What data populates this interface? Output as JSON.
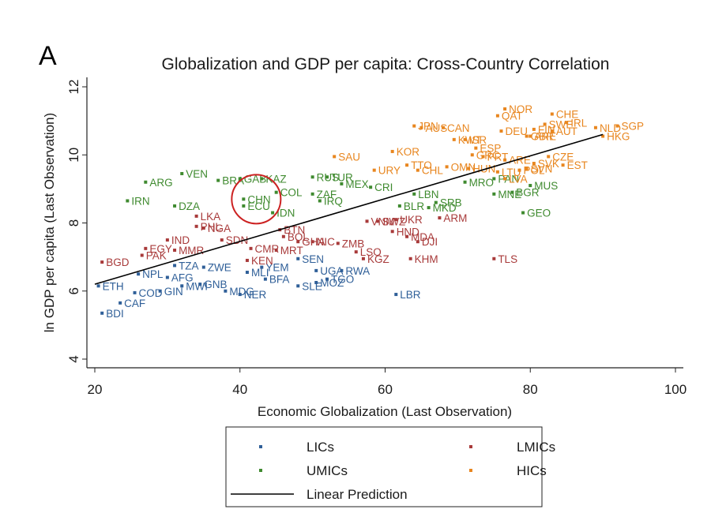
{
  "chart_data": {
    "type": "scatter",
    "panel_label": "A",
    "title": "Globalization and GDP per capita: Cross-Country Correlation",
    "xlabel": "Economic Globalization (Last Observation)",
    "ylabel": "ln GDP per capita (Last Observation)",
    "xlim": [
      20,
      100
    ],
    "ylim": [
      4,
      12
    ],
    "xticks": [
      20,
      40,
      60,
      80,
      100
    ],
    "yticks": [
      4,
      6,
      8,
      10,
      12
    ],
    "grid": false,
    "legend_position": "bottom",
    "highlight": {
      "label": "CHN",
      "shape": "circle",
      "color": "#cc2222"
    },
    "colors": {
      "LICs": "#2f5f98",
      "LMICs": "#a83a3a",
      "UMICs": "#3f8a2f",
      "HICs": "#e8861f",
      "fit": "#000000"
    },
    "fit_line": {
      "name": "Linear Prediction",
      "x": [
        20,
        90
      ],
      "y": [
        6.2,
        10.6
      ]
    },
    "legend": [
      {
        "name": "LICs",
        "color": "#2f5f98"
      },
      {
        "name": "LMICs",
        "color": "#a83a3a"
      },
      {
        "name": "UMICs",
        "color": "#3f8a2f"
      },
      {
        "name": "HICs",
        "color": "#e8861f"
      },
      {
        "name": "Linear Prediction",
        "color": "#000000"
      }
    ],
    "series": [
      {
        "name": "LICs",
        "color": "#2f5f98",
        "points": [
          {
            "label": "ETH",
            "x": 20.5,
            "y": 6.15
          },
          {
            "label": "BDI",
            "x": 21.0,
            "y": 5.35
          },
          {
            "label": "CAF",
            "x": 23.5,
            "y": 5.65
          },
          {
            "label": "COD",
            "x": 25.5,
            "y": 5.95
          },
          {
            "label": "NPL",
            "x": 26.0,
            "y": 6.5
          },
          {
            "label": "GIN",
            "x": 29.0,
            "y": 6.0
          },
          {
            "label": "AFG",
            "x": 30.0,
            "y": 6.4
          },
          {
            "label": "TZA",
            "x": 31.0,
            "y": 6.75
          },
          {
            "label": "ZWE",
            "x": 35.0,
            "y": 6.7
          },
          {
            "label": "MWI",
            "x": 32.0,
            "y": 6.15
          },
          {
            "label": "GNB",
            "x": 34.5,
            "y": 6.2
          },
          {
            "label": "MDG",
            "x": 38.0,
            "y": 6.0
          },
          {
            "label": "NER",
            "x": 40.0,
            "y": 5.9
          },
          {
            "label": "MLI",
            "x": 41.0,
            "y": 6.55
          },
          {
            "label": "YEM",
            "x": 43.0,
            "y": 6.7
          },
          {
            "label": "BFA",
            "x": 43.5,
            "y": 6.35
          },
          {
            "label": "SEN",
            "x": 48.0,
            "y": 6.95
          },
          {
            "label": "SLE",
            "x": 48.0,
            "y": 6.15
          },
          {
            "label": "UGA",
            "x": 50.5,
            "y": 6.6
          },
          {
            "label": "MOZ",
            "x": 50.5,
            "y": 6.25
          },
          {
            "label": "TGO",
            "x": 52.0,
            "y": 6.35
          },
          {
            "label": "RWA",
            "x": 54.0,
            "y": 6.6
          },
          {
            "label": "LBR",
            "x": 61.5,
            "y": 5.9
          }
        ]
      },
      {
        "name": "LMICs",
        "color": "#a83a3a",
        "points": [
          {
            "label": "BGD",
            "x": 21.0,
            "y": 6.85
          },
          {
            "label": "PAK",
            "x": 26.5,
            "y": 7.05
          },
          {
            "label": "EGY",
            "x": 27.0,
            "y": 7.25
          },
          {
            "label": "MMR",
            "x": 31.0,
            "y": 7.2
          },
          {
            "label": "IND",
            "x": 30.0,
            "y": 7.5
          },
          {
            "label": "LKA",
            "x": 34.0,
            "y": 8.2
          },
          {
            "label": "NGA",
            "x": 35.0,
            "y": 7.85
          },
          {
            "label": "PHL",
            "x": 34.0,
            "y": 7.9
          },
          {
            "label": "SDN",
            "x": 37.5,
            "y": 7.5
          },
          {
            "label": "KEN",
            "x": 41.0,
            "y": 6.9
          },
          {
            "label": "CMR",
            "x": 41.5,
            "y": 7.25
          },
          {
            "label": "MRT",
            "x": 45.0,
            "y": 7.2
          },
          {
            "label": "BTN",
            "x": 45.5,
            "y": 7.8
          },
          {
            "label": "BOL",
            "x": 46.0,
            "y": 7.6
          },
          {
            "label": "GHA",
            "x": 48.0,
            "y": 7.45
          },
          {
            "label": "NIC",
            "x": 50.0,
            "y": 7.45
          },
          {
            "label": "ZMB",
            "x": 53.5,
            "y": 7.4
          },
          {
            "label": "LSO",
            "x": 56.0,
            "y": 7.15
          },
          {
            "label": "KGZ",
            "x": 57.0,
            "y": 6.95
          },
          {
            "label": "KHM",
            "x": 63.5,
            "y": 6.95
          },
          {
            "label": "HND",
            "x": 61.0,
            "y": 7.75
          },
          {
            "label": "MDA",
            "x": 63.0,
            "y": 7.6
          },
          {
            "label": "UKR",
            "x": 61.5,
            "y": 8.1
          },
          {
            "label": "SWZ",
            "x": 59.0,
            "y": 8.05
          },
          {
            "label": "ARM",
            "x": 67.5,
            "y": 8.15
          },
          {
            "label": "DJI",
            "x": 64.5,
            "y": 7.45
          },
          {
            "label": "VNM",
            "x": 57.5,
            "y": 8.05
          },
          {
            "label": "TLS",
            "x": 75.0,
            "y": 6.95
          }
        ]
      },
      {
        "name": "UMICs",
        "color": "#3f8a2f",
        "points": [
          {
            "label": "ARG",
            "x": 27.0,
            "y": 9.2
          },
          {
            "label": "IRN",
            "x": 24.5,
            "y": 8.65
          },
          {
            "label": "VEN",
            "x": 32.0,
            "y": 9.45
          },
          {
            "label": "DZA",
            "x": 31.0,
            "y": 8.5
          },
          {
            "label": "BRA",
            "x": 37.0,
            "y": 9.25
          },
          {
            "label": "GAB",
            "x": 40.0,
            "y": 9.3
          },
          {
            "label": "KAZ",
            "x": 43.0,
            "y": 9.3
          },
          {
            "label": "CHN",
            "x": 40.5,
            "y": 8.7
          },
          {
            "label": "ECU",
            "x": 40.5,
            "y": 8.5
          },
          {
            "label": "COL",
            "x": 45.0,
            "y": 8.9
          },
          {
            "label": "IDN",
            "x": 44.5,
            "y": 8.3
          },
          {
            "label": "RUS",
            "x": 50.0,
            "y": 9.35
          },
          {
            "label": "ZAF",
            "x": 50.0,
            "y": 8.85
          },
          {
            "label": "MEX",
            "x": 54.0,
            "y": 9.15
          },
          {
            "label": "CRI",
            "x": 58.0,
            "y": 9.05
          },
          {
            "label": "TUR",
            "x": 52.0,
            "y": 9.35
          },
          {
            "label": "IRQ",
            "x": 51.0,
            "y": 8.65
          },
          {
            "label": "LBN",
            "x": 64.0,
            "y": 8.85
          },
          {
            "label": "SRB",
            "x": 67.0,
            "y": 8.6
          },
          {
            "label": "MKD",
            "x": 66.0,
            "y": 8.45
          },
          {
            "label": "BLR",
            "x": 62.0,
            "y": 8.5
          },
          {
            "label": "MRO",
            "x": 71.0,
            "y": 9.2
          },
          {
            "label": "PAN",
            "x": 75.0,
            "y": 9.3
          },
          {
            "label": "MUS",
            "x": 80.0,
            "y": 9.1
          },
          {
            "label": "MNE",
            "x": 75.0,
            "y": 8.85
          },
          {
            "label": "BGR",
            "x": 77.5,
            "y": 8.9
          },
          {
            "label": "GEO",
            "x": 79.0,
            "y": 8.3
          }
        ]
      },
      {
        "name": "HICs",
        "color": "#e8861f",
        "points": [
          {
            "label": "SAU",
            "x": 53.0,
            "y": 9.95
          },
          {
            "label": "URY",
            "x": 58.5,
            "y": 9.55
          },
          {
            "label": "KOR",
            "x": 61.0,
            "y": 10.1
          },
          {
            "label": "TTO",
            "x": 63.0,
            "y": 9.7
          },
          {
            "label": "CHL",
            "x": 64.5,
            "y": 9.55
          },
          {
            "label": "OMN",
            "x": 68.5,
            "y": 9.65
          },
          {
            "label": "HUN",
            "x": 71.5,
            "y": 9.6
          },
          {
            "label": "ARE",
            "x": 76.5,
            "y": 9.85
          },
          {
            "label": "JPN",
            "x": 64.0,
            "y": 10.85
          },
          {
            "label": "AUS",
            "x": 65.0,
            "y": 10.8
          },
          {
            "label": "CAN",
            "x": 68.0,
            "y": 10.8
          },
          {
            "label": "KWT",
            "x": 69.5,
            "y": 10.45
          },
          {
            "label": "ISR",
            "x": 71.0,
            "y": 10.45
          },
          {
            "label": "ESP",
            "x": 72.5,
            "y": 10.2
          },
          {
            "label": "GRC",
            "x": 72.0,
            "y": 10.0
          },
          {
            "label": "PRT",
            "x": 73.5,
            "y": 9.95
          },
          {
            "label": "LTU",
            "x": 75.5,
            "y": 9.5
          },
          {
            "label": "LVA",
            "x": 76.5,
            "y": 9.3
          },
          {
            "label": "SVK",
            "x": 80.5,
            "y": 9.75
          },
          {
            "label": "CZE",
            "x": 82.5,
            "y": 9.95
          },
          {
            "label": "EST",
            "x": 84.5,
            "y": 9.7
          },
          {
            "label": "SVN",
            "x": 79.5,
            "y": 9.6
          },
          {
            "label": "POL",
            "x": 78.5,
            "y": 9.55
          },
          {
            "label": "DEU",
            "x": 76.0,
            "y": 10.7
          },
          {
            "label": "GBR",
            "x": 79.5,
            "y": 10.55
          },
          {
            "label": "SWE",
            "x": 82.0,
            "y": 10.9
          },
          {
            "label": "FIN",
            "x": 80.5,
            "y": 10.75
          },
          {
            "label": "AUT",
            "x": 83.0,
            "y": 10.7
          },
          {
            "label": "NOR",
            "x": 76.5,
            "y": 11.35
          },
          {
            "label": "QAT",
            "x": 75.5,
            "y": 11.15
          },
          {
            "label": "CHE",
            "x": 83.0,
            "y": 11.2
          },
          {
            "label": "IRL",
            "x": 85.0,
            "y": 10.95
          },
          {
            "label": "ARE",
            "x": 80.0,
            "y": 10.55
          },
          {
            "label": "NLD",
            "x": 89.0,
            "y": 10.8
          },
          {
            "label": "SGP",
            "x": 92.0,
            "y": 10.85
          },
          {
            "label": "HKG",
            "x": 90.0,
            "y": 10.55
          }
        ]
      }
    ]
  }
}
